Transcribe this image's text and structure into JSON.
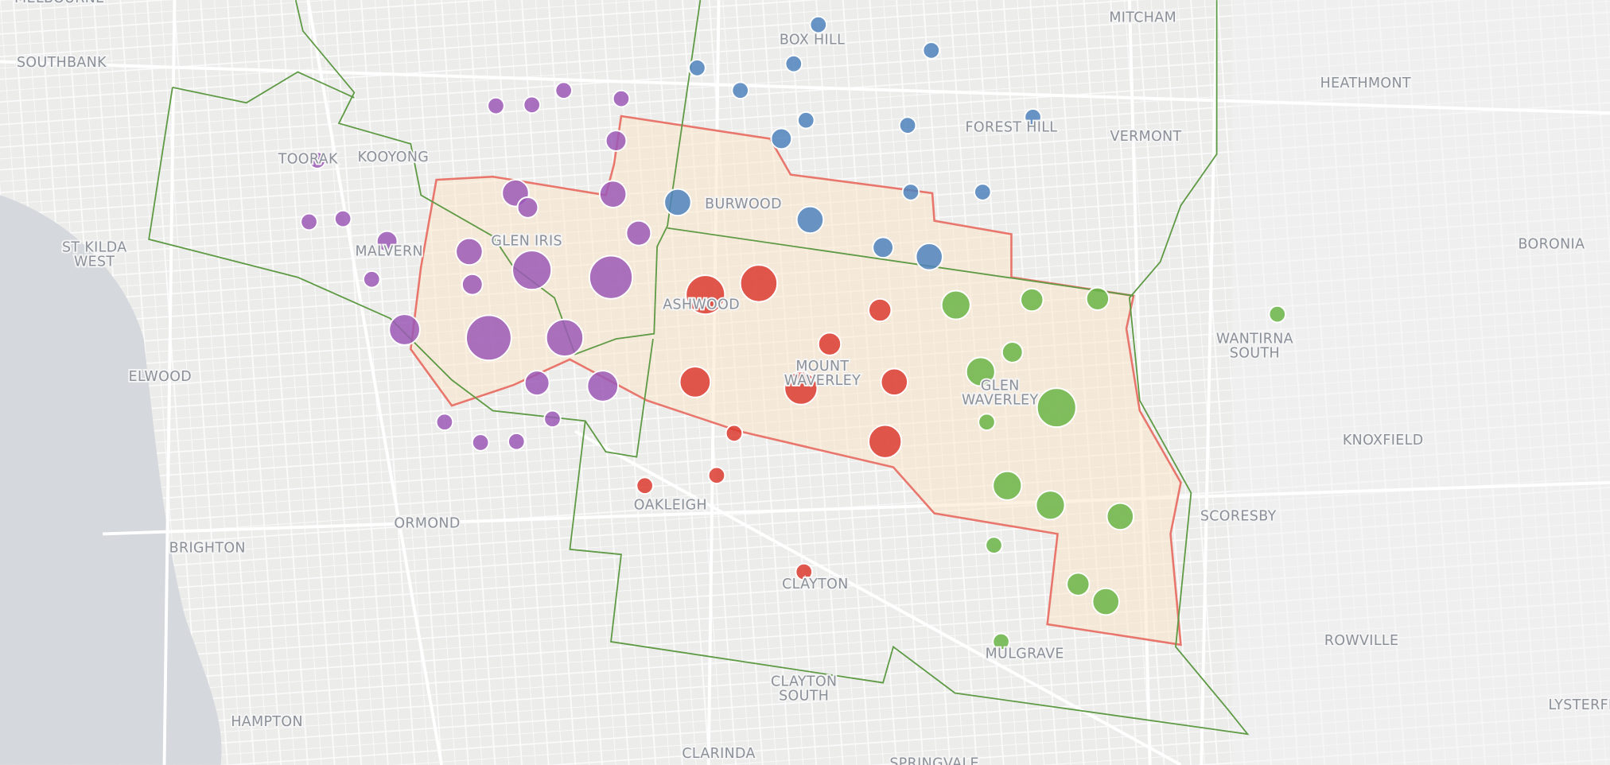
{
  "places": [
    {
      "lines": [
        "MELBOURNE"
      ]
    },
    {
      "lines": [
        "SOUTHBANK"
      ]
    },
    {
      "lines": [
        "BOX HILL"
      ]
    },
    {
      "lines": [
        "MITCHAM"
      ]
    },
    {
      "lines": [
        "HEATHMONT"
      ]
    },
    {
      "lines": [
        "FOREST HILL"
      ]
    },
    {
      "lines": [
        "VERMONT"
      ]
    },
    {
      "lines": [
        "TOORAK"
      ]
    },
    {
      "lines": [
        "KOOYONG"
      ]
    },
    {
      "lines": [
        "BURWOOD"
      ]
    },
    {
      "lines": [
        "GLEN IRIS"
      ]
    },
    {
      "lines": [
        "MALVERN"
      ]
    },
    {
      "lines": [
        "ST KILDA",
        "WEST"
      ]
    },
    {
      "lines": [
        "BORONIA"
      ]
    },
    {
      "lines": [
        "ASHWOOD"
      ]
    },
    {
      "lines": [
        "WANTIRNA",
        "SOUTH"
      ]
    },
    {
      "lines": [
        "ELWOOD"
      ]
    },
    {
      "lines": [
        "MOUNT",
        "WAVERLEY"
      ]
    },
    {
      "lines": [
        "GLEN",
        "WAVERLEY"
      ]
    },
    {
      "lines": [
        "KNOXFIELD"
      ]
    },
    {
      "lines": [
        "OAKLEIGH"
      ]
    },
    {
      "lines": [
        "SCORESBY"
      ]
    },
    {
      "lines": [
        "ORMOND"
      ]
    },
    {
      "lines": [
        "BRIGHTON"
      ]
    },
    {
      "lines": [
        "CLAYTON"
      ]
    },
    {
      "lines": [
        "ROWVILLE"
      ]
    },
    {
      "lines": [
        "MULGRAVE"
      ]
    },
    {
      "lines": [
        "CLAYTON",
        "SOUTH"
      ]
    },
    {
      "lines": [
        "HAMPTON"
      ]
    },
    {
      "lines": [
        "CLARINDA"
      ]
    },
    {
      "lines": [
        "LYSTERFIELD"
      ]
    },
    {
      "lines": [
        "SPRINGVALE"
      ]
    }
  ]
}
